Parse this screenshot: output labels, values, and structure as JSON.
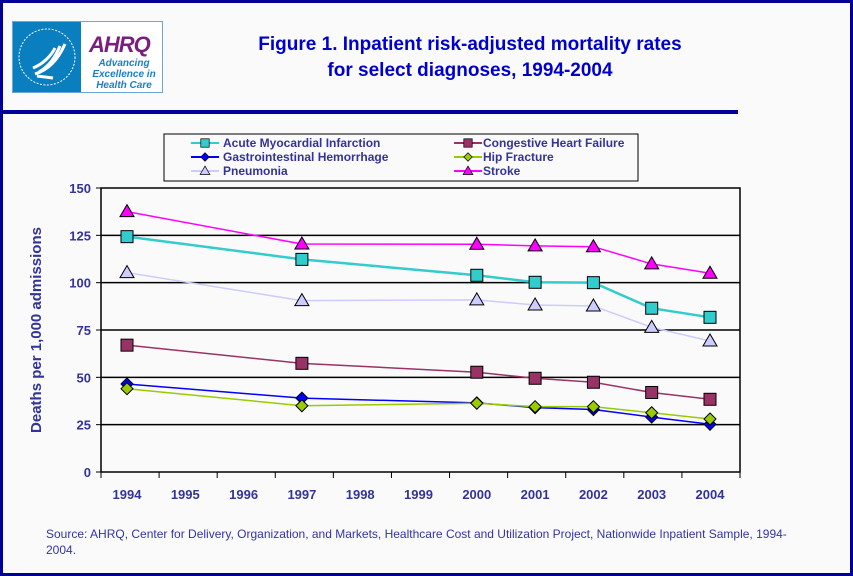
{
  "header": {
    "logo": {
      "name": "AHRQ",
      "tagline": "Advancing Excellence in Health Care",
      "seal": "Department of Health & Human Services USA"
    },
    "title_line1": "Figure 1. Inpatient risk-adjusted mortality rates",
    "title_line2": "for select diagnoses, 1994-2004"
  },
  "source": "Source: AHRQ, Center for Delivery, Organization, and Markets, Healthcare Cost and Utilization Project, Nationwide Inpatient Sample, 1994-2004.",
  "chart_data": {
    "type": "line",
    "title": "Figure 1. Inpatient risk-adjusted mortality rates for select diagnoses, 1994-2004",
    "xlabel": "",
    "ylabel": "Deaths per 1,000 admissions",
    "x_ticks": [
      "1994",
      "1995",
      "1996",
      "1997",
      "1998",
      "1999",
      "2000",
      "2001",
      "2002",
      "2003",
      "2004"
    ],
    "y_ticks": [
      0,
      25,
      50,
      75,
      100,
      125,
      150
    ],
    "ylim": [
      0,
      150
    ],
    "grid": "horizontal",
    "legend_placement": "top",
    "x": [
      1994,
      1997,
      2000,
      2001,
      2002,
      2003,
      2004
    ],
    "series": [
      {
        "name": "Acute Myocardial Infarction",
        "color": "#33cccc",
        "marker": "square",
        "values": [
          124.3,
          112.3,
          103.9,
          100.2,
          100.0,
          86.5,
          81.7
        ]
      },
      {
        "name": "Congestive Heart Failure",
        "color": "#993366",
        "marker": "square",
        "values": [
          67.0,
          57.4,
          52.7,
          49.5,
          47.4,
          42.0,
          38.4
        ]
      },
      {
        "name": "Gastrointestinal Hemorrhage",
        "color": "#0000ff",
        "marker": "diamond",
        "values": [
          46.5,
          39.0,
          36.5,
          34.0,
          33.0,
          29.0,
          25.2
        ]
      },
      {
        "name": "Hip Fracture",
        "color": "#99cc00",
        "marker": "diamond",
        "values": [
          44.0,
          35.0,
          36.3,
          34.5,
          34.5,
          31.3,
          28.0
        ]
      },
      {
        "name": "Pneumonia",
        "color": "#ccccff",
        "marker": "triangle",
        "values": [
          105.3,
          90.5,
          90.9,
          88.2,
          87.7,
          76.4,
          69.2
        ]
      },
      {
        "name": "Stroke",
        "color": "#ff00ff",
        "marker": "triangle",
        "values": [
          137.5,
          120.4,
          120.3,
          119.4,
          119.0,
          109.9,
          105.0
        ]
      }
    ]
  }
}
